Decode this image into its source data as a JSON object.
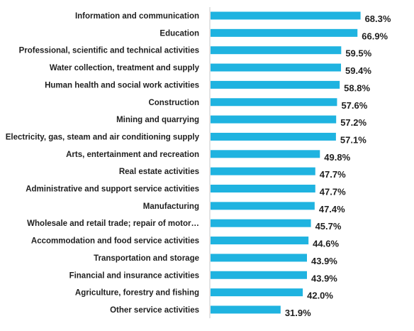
{
  "chart_data": {
    "type": "bar",
    "orientation": "horizontal",
    "categories": [
      "Information and communication",
      "Education",
      "Professional, scientific and technical activities",
      "Water collection, treatment and supply",
      "Human health and social work activities",
      "Construction",
      "Mining and quarrying",
      "Electricity, gas, steam and air conditioning supply",
      "Arts, entertainment and recreation",
      "Real estate activities",
      "Administrative and support service activities",
      "Manufacturing",
      "Wholesale and retail trade; repair of motor…",
      "Accommodation and food service activities",
      "Transportation and storage",
      "Financial and insurance activities",
      "Agriculture, forestry and fishing",
      "Other service activities"
    ],
    "values": [
      68.3,
      66.9,
      59.5,
      59.4,
      58.8,
      57.6,
      57.2,
      57.1,
      49.8,
      47.7,
      47.7,
      47.4,
      45.7,
      44.6,
      43.9,
      43.9,
      42.0,
      31.9
    ],
    "value_labels": [
      "68.3%",
      "66.9%",
      "59.5%",
      "59.4%",
      "58.8%",
      "57.6%",
      "57.2%",
      "57.1%",
      "49.8%",
      "47.7%",
      "47.7%",
      "47.4%",
      "45.7%",
      "44.6%",
      "43.9%",
      "43.9%",
      "42.0%",
      "31.9%"
    ],
    "xlim": [
      0,
      100
    ],
    "bar_color": "#1fb3e0",
    "axis_color": "#c8c8c8",
    "grid": false,
    "legend": false
  }
}
